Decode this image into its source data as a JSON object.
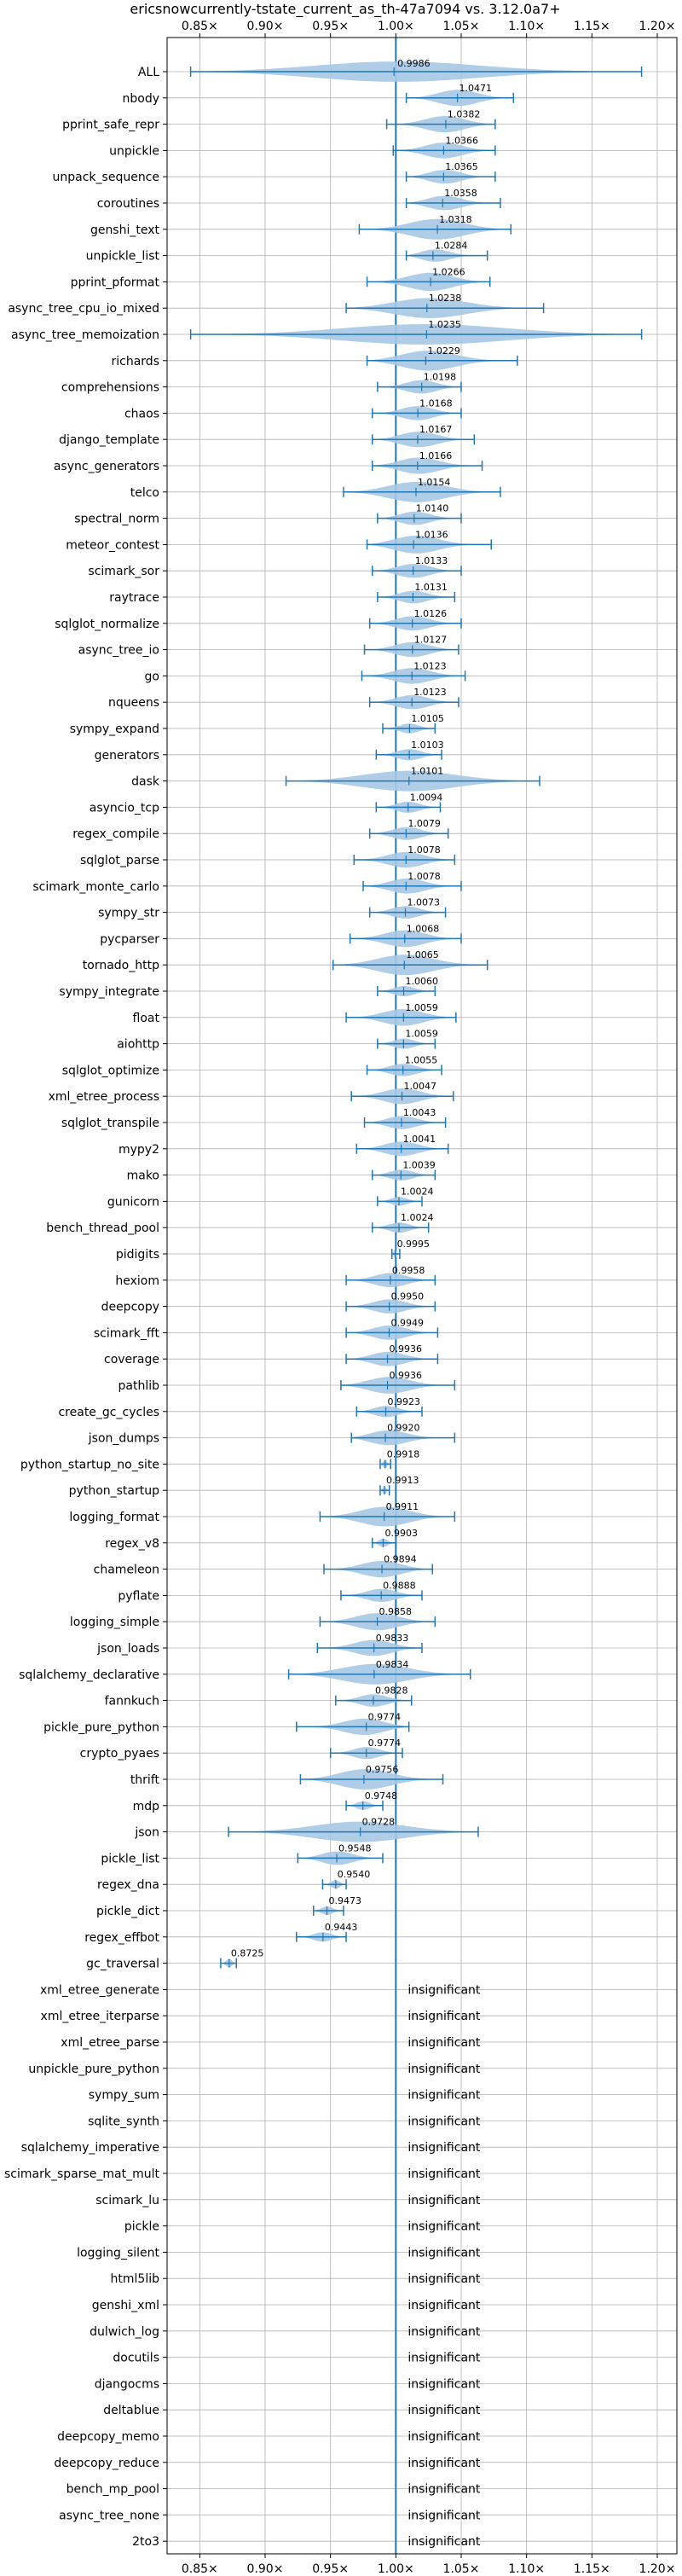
{
  "chart_data": {
    "type": "violin",
    "title": "ericsnowcurrently-tstate_current_as_th-47a7094 vs. 3.12.0a7+",
    "xlabel": "",
    "ylabel": "",
    "xlim": [
      0.825,
      1.215
    ],
    "xticks": [
      0.85,
      0.9,
      0.95,
      1.0,
      1.05,
      1.1,
      1.15,
      1.2
    ],
    "xtick_labels": [
      "0.85×",
      "0.90×",
      "0.95×",
      "1.00×",
      "1.05×",
      "1.10×",
      "1.15×",
      "1.20×"
    ],
    "reference_line": 1.0,
    "grid": true,
    "colors": {
      "violin": "#a6c8e3",
      "line": "#1f77b4",
      "grid": "#b0b0b0"
    },
    "insignificant_text": "insignificant",
    "benchmarks": [
      {
        "name": "ALL",
        "value": 0.9986,
        "min": 0.843,
        "max": 1.188,
        "show_value": false
      },
      {
        "name": "nbody",
        "value": 1.0471,
        "min": 1.008,
        "max": 1.09
      },
      {
        "name": "pprint_safe_repr",
        "value": 1.0382,
        "min": 0.993,
        "max": 1.076
      },
      {
        "name": "unpickle",
        "value": 1.0366,
        "min": 0.998,
        "max": 1.076
      },
      {
        "name": "unpack_sequence",
        "value": 1.0365,
        "min": 1.008,
        "max": 1.076
      },
      {
        "name": "coroutines",
        "value": 1.0358,
        "min": 1.008,
        "max": 1.08
      },
      {
        "name": "genshi_text",
        "value": 1.0318,
        "min": 0.972,
        "max": 1.088
      },
      {
        "name": "unpickle_list",
        "value": 1.0284,
        "min": 1.008,
        "max": 1.07
      },
      {
        "name": "pprint_pformat",
        "value": 1.0266,
        "min": 0.978,
        "max": 1.072
      },
      {
        "name": "async_tree_cpu_io_mixed",
        "value": 1.0238,
        "min": 0.962,
        "max": 1.113
      },
      {
        "name": "async_tree_memoization",
        "value": 1.0235,
        "min": 0.843,
        "max": 1.188
      },
      {
        "name": "richards",
        "value": 1.0229,
        "min": 0.978,
        "max": 1.093
      },
      {
        "name": "comprehensions",
        "value": 1.0198,
        "min": 0.986,
        "max": 1.05
      },
      {
        "name": "chaos",
        "value": 1.0168,
        "min": 0.982,
        "max": 1.05
      },
      {
        "name": "django_template",
        "value": 1.0167,
        "min": 0.982,
        "max": 1.06
      },
      {
        "name": "async_generators",
        "value": 1.0166,
        "min": 0.982,
        "max": 1.066
      },
      {
        "name": "telco",
        "value": 1.0154,
        "min": 0.96,
        "max": 1.08
      },
      {
        "name": "spectral_norm",
        "value": 1.014,
        "min": 0.986,
        "max": 1.05
      },
      {
        "name": "meteor_contest",
        "value": 1.0136,
        "min": 0.978,
        "max": 1.073
      },
      {
        "name": "scimark_sor",
        "value": 1.0133,
        "min": 0.982,
        "max": 1.05
      },
      {
        "name": "raytrace",
        "value": 1.0131,
        "min": 0.986,
        "max": 1.045
      },
      {
        "name": "sqlglot_normalize",
        "value": 1.0126,
        "min": 0.98,
        "max": 1.05
      },
      {
        "name": "async_tree_io",
        "value": 1.0127,
        "min": 0.976,
        "max": 1.048
      },
      {
        "name": "go",
        "value": 1.0123,
        "min": 0.974,
        "max": 1.053
      },
      {
        "name": "nqueens",
        "value": 1.0123,
        "min": 0.98,
        "max": 1.048
      },
      {
        "name": "sympy_expand",
        "value": 1.0105,
        "min": 0.99,
        "max": 1.03
      },
      {
        "name": "generators",
        "value": 1.0103,
        "min": 0.985,
        "max": 1.035
      },
      {
        "name": "dask",
        "value": 1.0101,
        "min": 0.916,
        "max": 1.11
      },
      {
        "name": "asyncio_tcp",
        "value": 1.0094,
        "min": 0.985,
        "max": 1.034
      },
      {
        "name": "regex_compile",
        "value": 1.0079,
        "min": 0.98,
        "max": 1.04
      },
      {
        "name": "sqlglot_parse",
        "value": 1.0078,
        "min": 0.968,
        "max": 1.045
      },
      {
        "name": "scimark_monte_carlo",
        "value": 1.0078,
        "min": 0.975,
        "max": 1.05
      },
      {
        "name": "sympy_str",
        "value": 1.0073,
        "min": 0.98,
        "max": 1.038
      },
      {
        "name": "pycparser",
        "value": 1.0068,
        "min": 0.965,
        "max": 1.05
      },
      {
        "name": "tornado_http",
        "value": 1.0065,
        "min": 0.952,
        "max": 1.07
      },
      {
        "name": "sympy_integrate",
        "value": 1.006,
        "min": 0.986,
        "max": 1.03
      },
      {
        "name": "float",
        "value": 1.0059,
        "min": 0.962,
        "max": 1.046
      },
      {
        "name": "aiohttp",
        "value": 1.0059,
        "min": 0.986,
        "max": 1.03
      },
      {
        "name": "sqlglot_optimize",
        "value": 1.0055,
        "min": 0.978,
        "max": 1.035
      },
      {
        "name": "xml_etree_process",
        "value": 1.0047,
        "min": 0.966,
        "max": 1.044
      },
      {
        "name": "sqlglot_transpile",
        "value": 1.0043,
        "min": 0.976,
        "max": 1.038
      },
      {
        "name": "mypy2",
        "value": 1.0041,
        "min": 0.97,
        "max": 1.04
      },
      {
        "name": "mako",
        "value": 1.0039,
        "min": 0.982,
        "max": 1.03
      },
      {
        "name": "gunicorn",
        "value": 1.0024,
        "min": 0.986,
        "max": 1.02
      },
      {
        "name": "bench_thread_pool",
        "value": 1.0024,
        "min": 0.982,
        "max": 1.025
      },
      {
        "name": "pidigits",
        "value": 0.9995,
        "min": 0.997,
        "max": 1.003
      },
      {
        "name": "hexiom",
        "value": 0.9958,
        "min": 0.962,
        "max": 1.03
      },
      {
        "name": "deepcopy",
        "value": 0.995,
        "min": 0.962,
        "max": 1.03
      },
      {
        "name": "scimark_fft",
        "value": 0.9949,
        "min": 0.962,
        "max": 1.032
      },
      {
        "name": "coverage",
        "value": 0.9936,
        "min": 0.962,
        "max": 1.032
      },
      {
        "name": "pathlib",
        "value": 0.9936,
        "min": 0.958,
        "max": 1.045
      },
      {
        "name": "create_gc_cycles",
        "value": 0.9923,
        "min": 0.97,
        "max": 1.02
      },
      {
        "name": "json_dumps",
        "value": 0.992,
        "min": 0.966,
        "max": 1.045
      },
      {
        "name": "python_startup_no_site",
        "value": 0.9918,
        "min": 0.988,
        "max": 0.996
      },
      {
        "name": "python_startup",
        "value": 0.9913,
        "min": 0.988,
        "max": 0.995
      },
      {
        "name": "logging_format",
        "value": 0.9911,
        "min": 0.942,
        "max": 1.045
      },
      {
        "name": "regex_v8",
        "value": 0.9903,
        "min": 0.982,
        "max": 1.0
      },
      {
        "name": "chameleon",
        "value": 0.9894,
        "min": 0.945,
        "max": 1.028
      },
      {
        "name": "pyflate",
        "value": 0.9888,
        "min": 0.958,
        "max": 1.02
      },
      {
        "name": "logging_simple",
        "value": 0.9858,
        "min": 0.942,
        "max": 1.03
      },
      {
        "name": "json_loads",
        "value": 0.9833,
        "min": 0.94,
        "max": 1.02
      },
      {
        "name": "sqlalchemy_declarative",
        "value": 0.9834,
        "min": 0.918,
        "max": 1.057
      },
      {
        "name": "fannkuch",
        "value": 0.9828,
        "min": 0.954,
        "max": 1.012
      },
      {
        "name": "pickle_pure_python",
        "value": 0.9774,
        "min": 0.924,
        "max": 1.01
      },
      {
        "name": "crypto_pyaes",
        "value": 0.9774,
        "min": 0.95,
        "max": 1.005
      },
      {
        "name": "thrift",
        "value": 0.9756,
        "min": 0.927,
        "max": 1.036
      },
      {
        "name": "mdp",
        "value": 0.9748,
        "min": 0.962,
        "max": 0.99
      },
      {
        "name": "json",
        "value": 0.9728,
        "min": 0.872,
        "max": 1.063
      },
      {
        "name": "pickle_list",
        "value": 0.9548,
        "min": 0.925,
        "max": 0.99
      },
      {
        "name": "regex_dna",
        "value": 0.954,
        "min": 0.944,
        "max": 0.962
      },
      {
        "name": "pickle_dict",
        "value": 0.9473,
        "min": 0.937,
        "max": 0.96
      },
      {
        "name": "regex_effbot",
        "value": 0.9443,
        "min": 0.924,
        "max": 0.962
      },
      {
        "name": "gc_traversal",
        "value": 0.8725,
        "min": 0.866,
        "max": 0.878
      },
      {
        "name": "xml_etree_generate",
        "insignificant": true
      },
      {
        "name": "xml_etree_iterparse",
        "insignificant": true
      },
      {
        "name": "xml_etree_parse",
        "insignificant": true
      },
      {
        "name": "unpickle_pure_python",
        "insignificant": true
      },
      {
        "name": "sympy_sum",
        "insignificant": true
      },
      {
        "name": "sqlite_synth",
        "insignificant": true
      },
      {
        "name": "sqlalchemy_imperative",
        "insignificant": true
      },
      {
        "name": "scimark_sparse_mat_mult",
        "insignificant": true
      },
      {
        "name": "scimark_lu",
        "insignificant": true
      },
      {
        "name": "pickle",
        "insignificant": true
      },
      {
        "name": "logging_silent",
        "insignificant": true
      },
      {
        "name": "html5lib",
        "insignificant": true
      },
      {
        "name": "genshi_xml",
        "insignificant": true
      },
      {
        "name": "dulwich_log",
        "insignificant": true
      },
      {
        "name": "docutils",
        "insignificant": true
      },
      {
        "name": "djangocms",
        "insignificant": true
      },
      {
        "name": "deltablue",
        "insignificant": true
      },
      {
        "name": "deepcopy_memo",
        "insignificant": true
      },
      {
        "name": "deepcopy_reduce",
        "insignificant": true
      },
      {
        "name": "bench_mp_pool",
        "insignificant": true
      },
      {
        "name": "async_tree_none",
        "insignificant": true
      },
      {
        "name": "2to3",
        "insignificant": true
      }
    ]
  }
}
